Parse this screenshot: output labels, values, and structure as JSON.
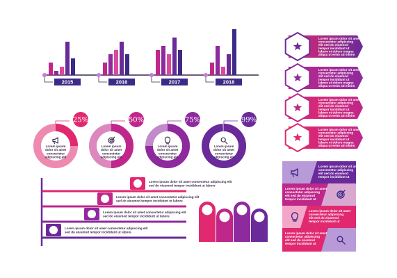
{
  "colors": {
    "pink": "#e0296f",
    "magenta": "#c0278a",
    "purple": "#8e2a9e",
    "violet": "#6a2a9a",
    "indigo": "#3c2a86",
    "light_pink": "#f4a6c8",
    "light_purple": "#d9b7e8"
  },
  "chart_data": [
    {
      "type": "bar",
      "categories": [
        "2015",
        "2016",
        "2017",
        "2018"
      ],
      "series": [
        {
          "values": [
            [
              3,
              1,
              2,
              8,
              4
            ],
            [
              3,
              5,
              6,
              8,
              5
            ],
            [
              6,
              7,
              5,
              9,
              6
            ],
            [
              3,
              7,
              2,
              5,
              11
            ]
          ]
        }
      ],
      "bar_colors": [
        "#c0278a",
        "#8e2a9e",
        "#d94a9c",
        "#6a2a9a",
        "#3c2a86"
      ],
      "ylim": [
        0,
        12
      ]
    },
    {
      "type": "pie",
      "values": [
        25,
        50,
        75,
        99
      ],
      "labels": [
        "25%",
        "50%",
        "75%",
        "99%"
      ],
      "icons": [
        "megaphone-icon",
        "target-icon",
        "lightbulb-icon",
        "magnifier-icon"
      ],
      "ring_colors": [
        "#e0296f",
        "#c0278a",
        "#8e2a9e",
        "#6a2a9a"
      ]
    }
  ],
  "donut_caption": [
    "Lorem ipsum",
    "dolor sit amet",
    "consectetur",
    "adipiscing elit"
  ],
  "hex_panels": [
    {
      "lines": [
        "Lorem ipsum dolor sit amet,",
        "consectetur adipiscing",
        "elit sed do eiusmod",
        "tempor incididunt ut",
        "labore et dolore magna",
        "aliqua ut enim ad minim"
      ],
      "icon": "star-icon"
    },
    {
      "lines": [
        "Lorem ipsum dolor sit amet,",
        "consectetur adipiscing",
        "elit sed do eiusmod",
        "tempor incididunt ut",
        "labore et dolore magna",
        "aliqua ut enim ad minim"
      ],
      "icon": "star-icon"
    },
    {
      "lines": [
        "Lorem ipsum dolor sit amet,",
        "consectetur adipiscing",
        "elit sed do eiusmod",
        "tempor incididunt ut",
        "labore et dolore magna",
        "aliqua ut enim ad minim"
      ],
      "icon": "star-icon"
    },
    {
      "lines": [
        "Lorem ipsum dolor sit amet,",
        "consectetur adipiscing",
        "elit sed do eiusmod",
        "tempor incididunt ut",
        "labore et dolore magna",
        "aliqua ut enim ad minim"
      ],
      "icon": "star-icon"
    }
  ],
  "steps": [
    {
      "lines": [
        "Lorem ipsum dolor sit amet consectetur adipiscing elit",
        "sed do eiusmod tempor incididunt ut labore"
      ]
    },
    {
      "lines": [
        "Lorem ipsum dolor sit amet consectetur adipiscing elit",
        "sed do eiusmod tempor incididunt ut labore"
      ]
    },
    {
      "lines": [
        "Lorem ipsum dolor sit amet consectetur adipiscing elit",
        "sed do eiusmod tempor incididunt ut labore"
      ]
    },
    {
      "lines": [
        "Lorem ipsum dolor sit amet consectetur adipiscing elit",
        "sed do eiusmod tempor incididunt ut labore"
      ]
    }
  ],
  "panel_grid": [
    {
      "lines": [
        "Lorem ipsum dolor sit amet",
        "consectetur adipiscing",
        "elit sed do eiusmod",
        "tempor incididunt ut"
      ],
      "icon": "megaphone-icon"
    },
    {
      "lines": [
        "Lorem ipsum dolor sit amet",
        "consectetur adipiscing",
        "elit sed do eiusmod",
        "tempor incididunt ut"
      ],
      "icon": "target-icon"
    },
    {
      "lines": [
        "Lorem ipsum dolor sit amet",
        "consectetur adipiscing",
        "elit sed do eiusmod",
        "tempor incididunt ut"
      ],
      "icon": "lightbulb-icon"
    },
    {
      "lines": [
        "Lorem ipsum dolor sit amet",
        "consectetur adipiscing",
        "elit sed do eiusmod",
        "tempor incididunt ut"
      ],
      "icon": "magnifier-icon"
    }
  ]
}
